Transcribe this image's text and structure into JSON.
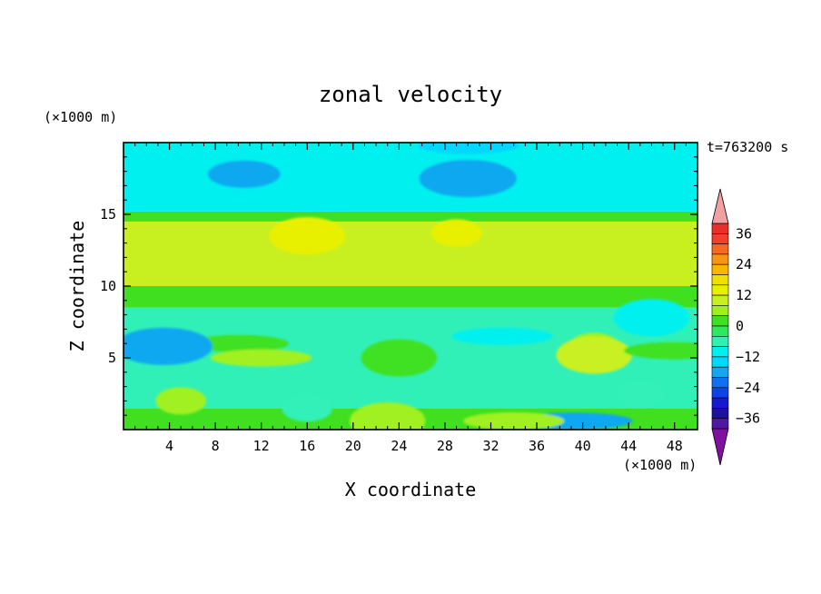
{
  "chart_data": {
    "type": "heatmap",
    "title": "zonal velocity",
    "xlabel": "X coordinate",
    "ylabel": "Z coordinate",
    "x_unit": "(×1000 m)",
    "y_unit": "(×1000 m)",
    "time_label": "t=763200 s",
    "xlim": [
      0,
      50
    ],
    "ylim": [
      0,
      20
    ],
    "x_ticks": [
      4,
      8,
      12,
      16,
      20,
      24,
      28,
      32,
      36,
      40,
      44,
      48
    ],
    "y_ticks": [
      5,
      10,
      15
    ],
    "colorbar": {
      "ticks": [
        36,
        24,
        12,
        0,
        -12,
        -24,
        -36
      ],
      "tick_labels": [
        "36",
        "24",
        "12",
        "0",
        "−12",
        "−24",
        "−36"
      ],
      "levels": [
        {
          "from": 36,
          "to": 40,
          "color": "#e8302a"
        },
        {
          "from": 32,
          "to": 36,
          "color": "#f0402a"
        },
        {
          "from": 28,
          "to": 32,
          "color": "#f56a20"
        },
        {
          "from": 24,
          "to": 28,
          "color": "#f89418"
        },
        {
          "from": 20,
          "to": 24,
          "color": "#f5b800"
        },
        {
          "from": 16,
          "to": 20,
          "color": "#f0e000"
        },
        {
          "from": 12,
          "to": 16,
          "color": "#e8f000"
        },
        {
          "from": 8,
          "to": 12,
          "color": "#c8f020"
        },
        {
          "from": 4,
          "to": 8,
          "color": "#a0f020"
        },
        {
          "from": 0,
          "to": 4,
          "color": "#40e020"
        },
        {
          "from": -4,
          "to": 0,
          "color": "#30e860"
        },
        {
          "from": -8,
          "to": -4,
          "color": "#30f0b8"
        },
        {
          "from": -12,
          "to": -8,
          "color": "#00f0f0"
        },
        {
          "from": -16,
          "to": -12,
          "color": "#00d8ff"
        },
        {
          "from": -20,
          "to": -16,
          "color": "#10a8f0"
        },
        {
          "from": -24,
          "to": -20,
          "color": "#1070f0"
        },
        {
          "from": -28,
          "to": -24,
          "color": "#1040e8"
        },
        {
          "from": -32,
          "to": -28,
          "color": "#1818d0"
        },
        {
          "from": -36,
          "to": -32,
          "color": "#2010a0"
        },
        {
          "from": -40,
          "to": -36,
          "color": "#5018a0"
        }
      ],
      "over_color": "#f0a0a0",
      "under_color": "#8010a0"
    },
    "layers": [
      {
        "z_from": 0,
        "z_to": 1.5,
        "value": 2
      },
      {
        "z_from": 1.5,
        "z_to": 8.5,
        "value": -6
      },
      {
        "z_from": 8.5,
        "z_to": 10,
        "value": 2
      },
      {
        "z_from": 10,
        "z_to": 14.5,
        "value": 10
      },
      {
        "z_from": 14.5,
        "z_to": 15.2,
        "value": 2
      },
      {
        "z_from": 15.2,
        "z_to": 20,
        "value": -12
      }
    ],
    "patches": [
      {
        "x": 10.5,
        "z": 17.8,
        "value": -18
      },
      {
        "x": 30,
        "z": 17.5,
        "value": -18
      },
      {
        "x": 30,
        "z": 19.8,
        "value": -14
      },
      {
        "x": 29,
        "z": 13.7,
        "value": 14
      },
      {
        "x": 16,
        "z": 13.5,
        "value": 14
      },
      {
        "x": 10,
        "z": 6.0,
        "value": 2
      },
      {
        "x": 5,
        "z": 6.0,
        "value": -14
      },
      {
        "x": 3.5,
        "z": 5.8,
        "value": -18
      },
      {
        "x": 12,
        "z": 5.0,
        "value": 6
      },
      {
        "x": 5,
        "z": 2.0,
        "value": 6
      },
      {
        "x": 24,
        "z": 5.0,
        "value": 2
      },
      {
        "x": 33,
        "z": 6.5,
        "value": -12
      },
      {
        "x": 41,
        "z": 5.8,
        "value": 6
      },
      {
        "x": 41,
        "z": 5.2,
        "value": 10
      },
      {
        "x": 39,
        "z": 0.6,
        "value": -18
      },
      {
        "x": 45,
        "z": 2.5,
        "value": -8
      },
      {
        "x": 46,
        "z": 7.8,
        "value": -12
      },
      {
        "x": 48,
        "z": 5.5,
        "value": 2
      },
      {
        "x": 16,
        "z": 1.5,
        "value": -8
      },
      {
        "x": 23,
        "z": 0.6,
        "value": 6
      },
      {
        "x": 34,
        "z": 0.6,
        "value": 6
      }
    ]
  }
}
